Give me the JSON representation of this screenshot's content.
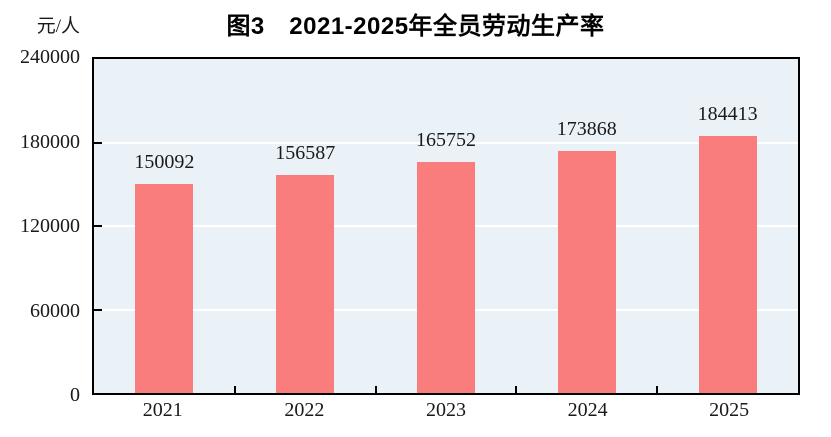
{
  "chart": {
    "title": "图3　2021-2025年全员劳动生产率",
    "y_unit": "元/人"
  },
  "chart_data": {
    "type": "bar",
    "title": "图3　2021-2025年全员劳动生产率",
    "categories": [
      "2021",
      "2022",
      "2023",
      "2024",
      "2025"
    ],
    "values": [
      150092,
      156587,
      165752,
      173868,
      184413
    ],
    "xlabel": "",
    "ylabel": "元/人",
    "ylim": [
      0,
      240000
    ],
    "yticks": [
      0,
      60000,
      120000,
      180000,
      240000
    ],
    "grid": true,
    "data_labels": true,
    "legend": "none",
    "colors": {
      "bar": "#fa7d7d",
      "plot_background": "#eaf2f8",
      "gridline": "#ffffff",
      "axis": "#000000",
      "text": "#1a1a1a"
    }
  }
}
